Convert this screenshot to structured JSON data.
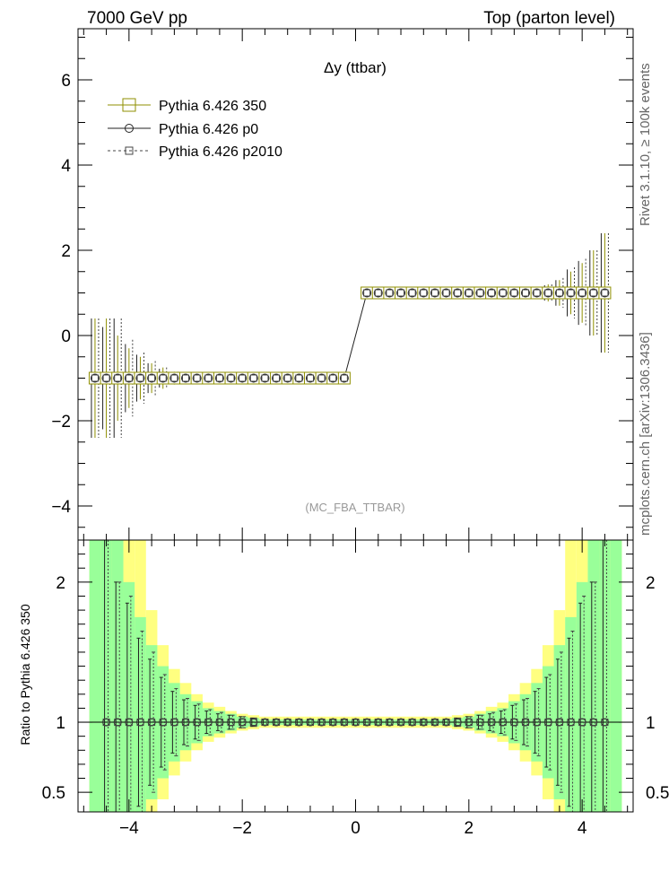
{
  "header": {
    "left": "7000 GeV pp",
    "right": "Top (parton level)"
  },
  "side_text": {
    "top": "Rivet 3.1.10, ≥ 100k events",
    "bottom": "mcplots.cern.ch [arXiv:1306.3436]"
  },
  "chart_data": [
    {
      "type": "line",
      "panel": "main",
      "title": "Δy (ttbar)",
      "watermark": "(MC_FBA_TTBAR)",
      "xlim": [
        -4.9,
        4.9
      ],
      "ylim": [
        -4.8,
        7.2
      ],
      "yticks": [
        -4,
        -2,
        0,
        2,
        4,
        6
      ],
      "ytick_labels": [
        "−4",
        "−2",
        "0",
        "2",
        "4",
        "6"
      ],
      "x": [
        -4.6,
        -4.4,
        -4.2,
        -4.0,
        -3.8,
        -3.6,
        -3.4,
        -3.2,
        -3.0,
        -2.8,
        -2.6,
        -2.4,
        -2.2,
        -2.0,
        -1.8,
        -1.6,
        -1.4,
        -1.2,
        -1.0,
        -0.8,
        -0.6,
        -0.4,
        -0.2,
        0.2,
        0.4,
        0.6,
        0.8,
        1.0,
        1.2,
        1.4,
        1.6,
        1.8,
        2.0,
        2.2,
        2.4,
        2.6,
        2.8,
        3.0,
        3.2,
        3.4,
        3.6,
        3.8,
        4.0,
        4.2,
        4.4
      ],
      "series": [
        {
          "name": "Pythia 6.426 350",
          "color": "#8f8f00",
          "marker": "square-big",
          "values": [
            -1,
            -1,
            -1,
            -1,
            -1,
            -1,
            -1,
            -1,
            -1,
            -1,
            -1,
            -1,
            -1,
            -1,
            -1,
            -1,
            -1,
            -1,
            -1,
            -1,
            -1,
            -1,
            -1,
            1,
            1,
            1,
            1,
            1,
            1,
            1,
            1,
            1,
            1,
            1,
            1,
            1,
            1,
            1,
            1,
            1,
            1,
            1,
            1,
            1,
            1
          ],
          "errors": [
            1.4,
            1.4,
            1.0,
            0.7,
            0.5,
            0.35,
            0.25,
            0.15,
            0.1,
            0.06,
            0.04,
            0.03,
            0.02,
            0.01,
            0.01,
            0.01,
            0.01,
            0.01,
            0.01,
            0.01,
            0.01,
            0.01,
            0.01,
            0.01,
            0.01,
            0.01,
            0.01,
            0.01,
            0.01,
            0.01,
            0.01,
            0.01,
            0.01,
            0.01,
            0.02,
            0.03,
            0.05,
            0.08,
            0.12,
            0.2,
            0.3,
            0.5,
            0.7,
            1.0,
            1.4
          ]
        },
        {
          "name": "Pythia 6.426 p0",
          "color": "#222222",
          "marker": "circle",
          "values": [
            -1,
            -1,
            -1,
            -1,
            -1,
            -1,
            -1,
            -1,
            -1,
            -1,
            -1,
            -1,
            -1,
            -1,
            -1,
            -1,
            -1,
            -1,
            -1,
            -1,
            -1,
            -1,
            -1,
            1,
            1,
            1,
            1,
            1,
            1,
            1,
            1,
            1,
            1,
            1,
            1,
            1,
            1,
            1,
            1,
            1,
            1,
            1,
            1,
            1,
            1
          ],
          "errors": [
            1.4,
            1.2,
            1.4,
            0.8,
            0.55,
            0.35,
            0.22,
            0.14,
            0.09,
            0.06,
            0.04,
            0.03,
            0.02,
            0.01,
            0.01,
            0.01,
            0.01,
            0.01,
            0.01,
            0.01,
            0.01,
            0.01,
            0.01,
            0.01,
            0.01,
            0.01,
            0.01,
            0.01,
            0.01,
            0.01,
            0.01,
            0.01,
            0.01,
            0.01,
            0.02,
            0.03,
            0.05,
            0.08,
            0.12,
            0.18,
            0.3,
            0.55,
            0.75,
            1.0,
            1.4
          ]
        },
        {
          "name": "Pythia 6.426 p2010",
          "color": "#444444",
          "marker": "square-small",
          "values": [
            -1,
            -1,
            -1,
            -1,
            -1,
            -1,
            -1,
            -1,
            -1,
            -1,
            -1,
            -1,
            -1,
            -1,
            -1,
            -1,
            -1,
            -1,
            -1,
            -1,
            -1,
            -1,
            -1,
            1,
            1,
            1,
            1,
            1,
            1,
            1,
            1,
            1,
            1,
            1,
            1,
            1,
            1,
            1,
            1,
            1,
            1,
            1,
            1,
            1,
            1
          ],
          "errors": [
            1.4,
            1.4,
            1.4,
            0.9,
            0.6,
            0.4,
            0.25,
            0.15,
            0.1,
            0.06,
            0.04,
            0.03,
            0.02,
            0.01,
            0.01,
            0.01,
            0.01,
            0.01,
            0.01,
            0.01,
            0.01,
            0.01,
            0.01,
            0.01,
            0.01,
            0.01,
            0.01,
            0.01,
            0.01,
            0.01,
            0.01,
            0.01,
            0.01,
            0.01,
            0.02,
            0.03,
            0.05,
            0.08,
            0.12,
            0.2,
            0.35,
            0.6,
            0.8,
            1.0,
            1.4
          ]
        }
      ],
      "legend": "top-left"
    },
    {
      "type": "line",
      "panel": "ratio",
      "ylabel": "Ratio to Pythia 6.426 350",
      "xlim": [
        -4.9,
        4.9
      ],
      "ylim": [
        0.36,
        2.3
      ],
      "yticks": [
        0.5,
        1,
        2
      ],
      "ytick_labels": [
        "0.5",
        "1",
        "2"
      ],
      "xticks": [
        -4,
        -2,
        0,
        2,
        4
      ],
      "xtick_labels": [
        "−4",
        "−2",
        "0",
        "2",
        "4"
      ],
      "bands": {
        "bin_edges": [
          -4.7,
          -4.5,
          -4.3,
          -4.1,
          -3.9,
          -3.7,
          -3.5,
          -3.3,
          -3.1,
          -2.9,
          -2.7,
          -2.5,
          -2.3,
          -2.1,
          -1.9,
          -1.7,
          -1.5,
          -1.3,
          -1.1,
          -0.9,
          -0.7,
          -0.5,
          -0.3,
          -0.1,
          0.1,
          0.3,
          0.5,
          0.7,
          0.9,
          1.1,
          1.3,
          1.5,
          1.7,
          1.9,
          2.1,
          2.3,
          2.5,
          2.7,
          2.9,
          3.1,
          3.3,
          3.5,
          3.7,
          3.9,
          4.1,
          4.3,
          4.5,
          4.7
        ],
        "green_halfwidth": [
          2.0,
          2.0,
          1.3,
          1.0,
          0.75,
          0.55,
          0.4,
          0.28,
          0.2,
          0.15,
          0.1,
          0.08,
          0.06,
          0.04,
          0.03,
          0.02,
          0.02,
          0.02,
          0.02,
          0.02,
          0.02,
          0.02,
          0.02,
          0.02,
          0.02,
          0.02,
          0.02,
          0.02,
          0.02,
          0.02,
          0.02,
          0.02,
          0.03,
          0.04,
          0.06,
          0.08,
          0.1,
          0.15,
          0.2,
          0.28,
          0.4,
          0.55,
          0.75,
          1.0,
          1.3,
          2.0,
          2.0
        ],
        "yellow_halfwidth": [
          2.0,
          2.0,
          2.0,
          2.0,
          1.3,
          0.8,
          0.55,
          0.38,
          0.28,
          0.2,
          0.14,
          0.11,
          0.08,
          0.06,
          0.05,
          0.04,
          0.04,
          0.04,
          0.04,
          0.04,
          0.04,
          0.04,
          0.04,
          0.04,
          0.04,
          0.04,
          0.04,
          0.04,
          0.04,
          0.04,
          0.04,
          0.04,
          0.05,
          0.06,
          0.08,
          0.11,
          0.14,
          0.2,
          0.28,
          0.38,
          0.55,
          0.8,
          1.3,
          2.0,
          2.0,
          2.0,
          2.0
        ]
      },
      "x": [
        -4.4,
        -4.2,
        -4.0,
        -3.8,
        -3.6,
        -3.4,
        -3.2,
        -3.0,
        -2.8,
        -2.6,
        -2.4,
        -2.2,
        -2.0,
        -1.8,
        -1.6,
        -1.4,
        -1.2,
        -1.0,
        -0.8,
        -0.6,
        -0.4,
        -0.2,
        0.0,
        0.2,
        0.4,
        0.6,
        0.8,
        1.0,
        1.2,
        1.4,
        1.6,
        1.8,
        2.0,
        2.2,
        2.4,
        2.6,
        2.8,
        3.0,
        3.2,
        3.4,
        3.6,
        3.8,
        4.0,
        4.2,
        4.4
      ],
      "series": [
        {
          "name": "Pythia 6.426 p0",
          "color": "#222222",
          "marker": "circle",
          "values": [
            1,
            1,
            1,
            1,
            1,
            1,
            1,
            1,
            1,
            1,
            1,
            1,
            1,
            1,
            1,
            1,
            1,
            1,
            1,
            1,
            1,
            1,
            1,
            1,
            1,
            1,
            1,
            1,
            1,
            1,
            1,
            1,
            1,
            1,
            1,
            1,
            1,
            1,
            1,
            1,
            1,
            1,
            1,
            1,
            1
          ],
          "errors": [
            1.3,
            1.0,
            0.85,
            0.6,
            0.45,
            0.32,
            0.22,
            0.16,
            0.12,
            0.08,
            0.06,
            0.05,
            0.04,
            0.03,
            0.02,
            0.02,
            0.02,
            0.02,
            0.02,
            0.02,
            0.02,
            0.02,
            0.02,
            0.02,
            0.02,
            0.02,
            0.02,
            0.02,
            0.02,
            0.02,
            0.02,
            0.03,
            0.04,
            0.05,
            0.06,
            0.08,
            0.12,
            0.16,
            0.22,
            0.32,
            0.45,
            0.6,
            0.85,
            1.0,
            1.3
          ]
        },
        {
          "name": "Pythia 6.426 p2010",
          "color": "#444444",
          "marker": "square-small",
          "values": [
            1,
            1,
            1,
            1,
            1,
            1,
            1,
            1,
            1,
            1,
            1,
            1,
            1,
            1,
            1,
            1,
            1,
            1,
            1,
            1,
            1,
            1,
            1,
            1,
            1,
            1,
            1,
            1,
            1,
            1,
            1,
            1,
            1,
            1,
            1,
            1,
            1,
            1,
            1,
            1,
            1,
            1,
            1,
            1,
            1
          ],
          "errors": [
            1.3,
            1.0,
            0.9,
            0.65,
            0.5,
            0.34,
            0.24,
            0.17,
            0.13,
            0.09,
            0.07,
            0.05,
            0.04,
            0.03,
            0.02,
            0.02,
            0.02,
            0.02,
            0.02,
            0.02,
            0.02,
            0.02,
            0.02,
            0.02,
            0.02,
            0.02,
            0.02,
            0.02,
            0.02,
            0.02,
            0.02,
            0.03,
            0.04,
            0.05,
            0.07,
            0.09,
            0.13,
            0.17,
            0.24,
            0.34,
            0.5,
            0.65,
            0.9,
            1.0,
            1.3
          ]
        }
      ]
    }
  ]
}
